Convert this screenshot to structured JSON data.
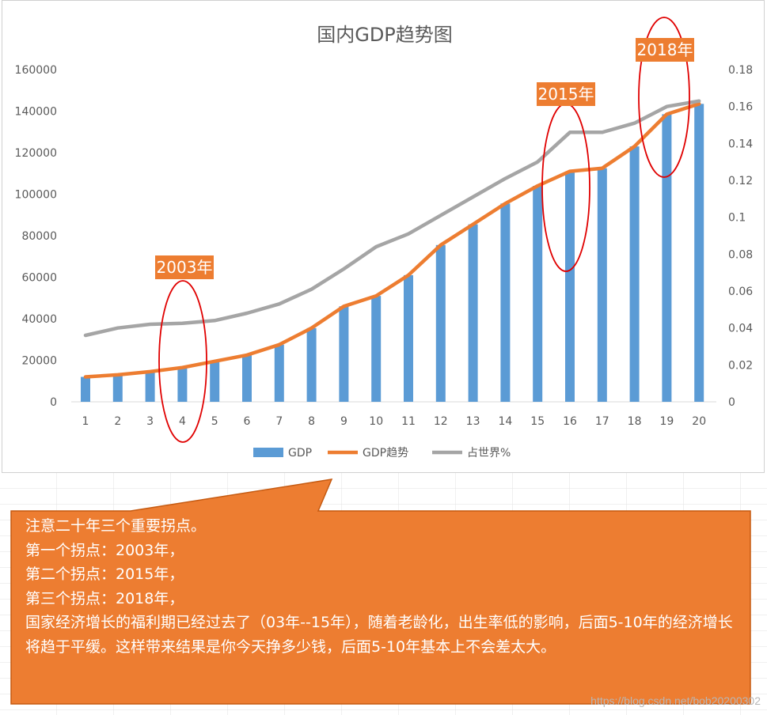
{
  "chart_data": {
    "type": "bar+line",
    "title": "国内GDP趋势图",
    "categories": [
      "1",
      "2",
      "3",
      "4",
      "5",
      "6",
      "7",
      "8",
      "9",
      "10",
      "11",
      "12",
      "13",
      "14",
      "15",
      "16",
      "17",
      "18",
      "19",
      "20"
    ],
    "y_left": {
      "ylim": [
        0,
        160000
      ],
      "ticks": [
        "0",
        "20000",
        "40000",
        "60000",
        "80000",
        "100000",
        "120000",
        "140000",
        "160000"
      ]
    },
    "y_right": {
      "ylim": [
        0,
        0.18
      ],
      "ticks": [
        "0",
        "0.02",
        "0.04",
        "0.06",
        "0.08",
        "0.1",
        "0.12",
        "0.14",
        "0.16",
        "0.18"
      ]
    },
    "series": [
      {
        "name": "GDP",
        "type": "bar",
        "axis": "left",
        "color": "#5b9bd5",
        "values": [
          12000,
          13000,
          14500,
          16500,
          19500,
          22500,
          27500,
          35500,
          46000,
          51000,
          61000,
          75500,
          85500,
          95500,
          104000,
          111000,
          112500,
          123000,
          138500,
          143500
        ]
      },
      {
        "name": "GDP趋势",
        "type": "line",
        "axis": "left",
        "color": "#ed7d31",
        "values": [
          12000,
          13000,
          14500,
          16500,
          19500,
          22500,
          27500,
          35500,
          46000,
          51000,
          61000,
          75500,
          85500,
          95500,
          104000,
          111000,
          112500,
          123000,
          138500,
          143500
        ]
      },
      {
        "name": "占世界%",
        "type": "line",
        "axis": "right",
        "color": "#a5a5a5",
        "values": [
          0.036,
          0.04,
          0.042,
          0.0425,
          0.044,
          0.048,
          0.053,
          0.061,
          0.072,
          0.084,
          0.091,
          0.101,
          0.111,
          0.121,
          0.13,
          0.146,
          0.146,
          0.151,
          0.16,
          0.163
        ]
      }
    ],
    "legend": "bottom",
    "grid": false,
    "annotations": [
      {
        "label": "2003年",
        "category": "4"
      },
      {
        "label": "2015年",
        "category": "16"
      },
      {
        "label": "2018年",
        "category": "19"
      }
    ]
  },
  "callout": {
    "color": "#ed7d31",
    "lines": [
      "注意二十年三个重要拐点。",
      "第一个拐点：2003年，",
      "第二个拐点：2015年，",
      "第三个拐点：2018年，",
      "国家经济增长的福利期已经过去了（03年--15年），随着老龄化，出生率低的影响，后面5-10年的经济增长将趋于平缓。这样带来结果是你今天挣多少钱，后面5-10年基本上不会差太大。"
    ]
  },
  "watermark": "https://blog.csdn.net/bob20200302"
}
